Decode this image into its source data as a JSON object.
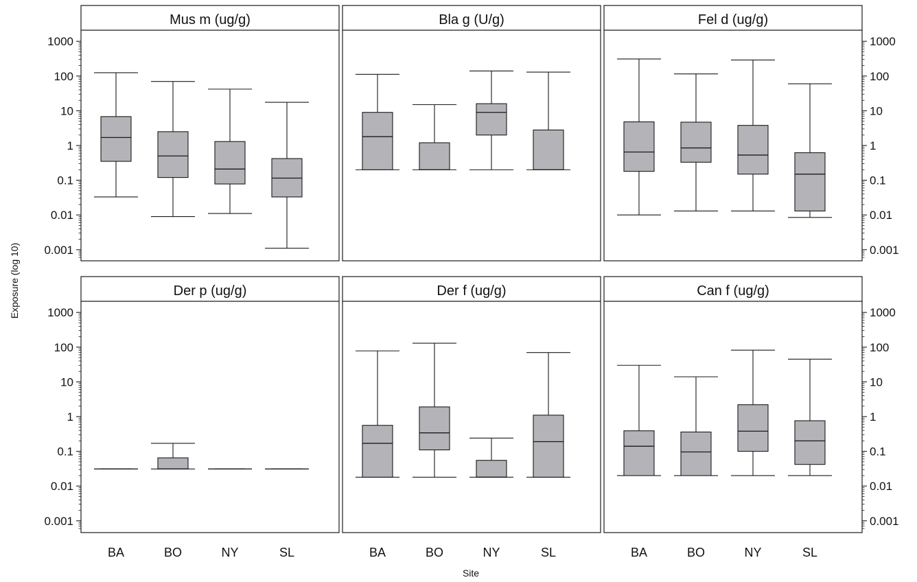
{
  "figure": {
    "ylabel": "Exposure (log 10)",
    "xlabel": "Site"
  },
  "chart_data": {
    "type": "box",
    "yscale": "log10",
    "ylim": [
      0.0005,
      2000
    ],
    "yticks": [
      0.001,
      0.01,
      0.1,
      1,
      10,
      100,
      1000
    ],
    "ytick_labels": [
      "0.001",
      "0.01",
      "0.1",
      "1",
      "10",
      "100",
      "1000"
    ],
    "categories": [
      "BA",
      "BO",
      "NY",
      "SL"
    ],
    "box_fill": "#b4b4b8",
    "panels": [
      {
        "title": "Mus m (ug/g)",
        "boxes": [
          {
            "min": 0.033,
            "q1": 0.35,
            "median": 1.7,
            "q3": 6.8,
            "max": 125
          },
          {
            "min": 0.009,
            "q1": 0.12,
            "median": 0.5,
            "q3": 2.5,
            "max": 70
          },
          {
            "min": 0.011,
            "q1": 0.078,
            "median": 0.21,
            "q3": 1.3,
            "max": 42
          },
          {
            "min": 0.0011,
            "q1": 0.033,
            "median": 0.115,
            "q3": 0.42,
            "max": 17.5
          }
        ]
      },
      {
        "title": "Bla g (U/g)",
        "boxes": [
          {
            "min": 0.2,
            "q1": 0.2,
            "median": 1.8,
            "q3": 9,
            "max": 112
          },
          {
            "min": 0.2,
            "q1": 0.2,
            "median": 0.2,
            "q3": 1.2,
            "max": 15
          },
          {
            "min": 0.2,
            "q1": 2,
            "median": 9,
            "q3": 16,
            "max": 140
          },
          {
            "min": 0.2,
            "q1": 0.2,
            "median": 0.2,
            "q3": 2.8,
            "max": 130
          }
        ]
      },
      {
        "title": "Fel d (ug/g)",
        "boxes": [
          {
            "min": 0.01,
            "q1": 0.18,
            "median": 0.65,
            "q3": 4.8,
            "max": 310
          },
          {
            "min": 0.013,
            "q1": 0.33,
            "median": 0.85,
            "q3": 4.7,
            "max": 115
          },
          {
            "min": 0.013,
            "q1": 0.15,
            "median": 0.53,
            "q3": 3.8,
            "max": 290
          },
          {
            "min": 0.0085,
            "q1": 0.013,
            "median": 0.15,
            "q3": 0.62,
            "max": 60
          }
        ]
      },
      {
        "title": "Der p (ug/g)",
        "boxes": [
          {
            "min": 0.031,
            "q1": 0.031,
            "median": 0.031,
            "q3": 0.031,
            "max": 0.031
          },
          {
            "min": 0.031,
            "q1": 0.031,
            "median": 0.031,
            "q3": 0.065,
            "max": 0.17
          },
          {
            "min": 0.031,
            "q1": 0.031,
            "median": 0.031,
            "q3": 0.031,
            "max": 0.031
          },
          {
            "min": 0.031,
            "q1": 0.031,
            "median": 0.031,
            "q3": 0.031,
            "max": 0.031
          }
        ]
      },
      {
        "title": "Der f (ug/g)",
        "boxes": [
          {
            "min": 0.018,
            "q1": 0.018,
            "median": 0.17,
            "q3": 0.56,
            "max": 78
          },
          {
            "min": 0.018,
            "q1": 0.11,
            "median": 0.34,
            "q3": 1.9,
            "max": 130
          },
          {
            "min": 0.018,
            "q1": 0.018,
            "median": 0.018,
            "q3": 0.055,
            "max": 0.24
          },
          {
            "min": 0.018,
            "q1": 0.018,
            "median": 0.19,
            "q3": 1.1,
            "max": 70
          }
        ]
      },
      {
        "title": "Can f (ug/g)",
        "boxes": [
          {
            "min": 0.02,
            "q1": 0.02,
            "median": 0.14,
            "q3": 0.39,
            "max": 30
          },
          {
            "min": 0.02,
            "q1": 0.02,
            "median": 0.096,
            "q3": 0.36,
            "max": 14
          },
          {
            "min": 0.02,
            "q1": 0.1,
            "median": 0.38,
            "q3": 2.2,
            "max": 82
          },
          {
            "min": 0.02,
            "q1": 0.042,
            "median": 0.2,
            "q3": 0.76,
            "max": 45
          }
        ]
      }
    ]
  }
}
